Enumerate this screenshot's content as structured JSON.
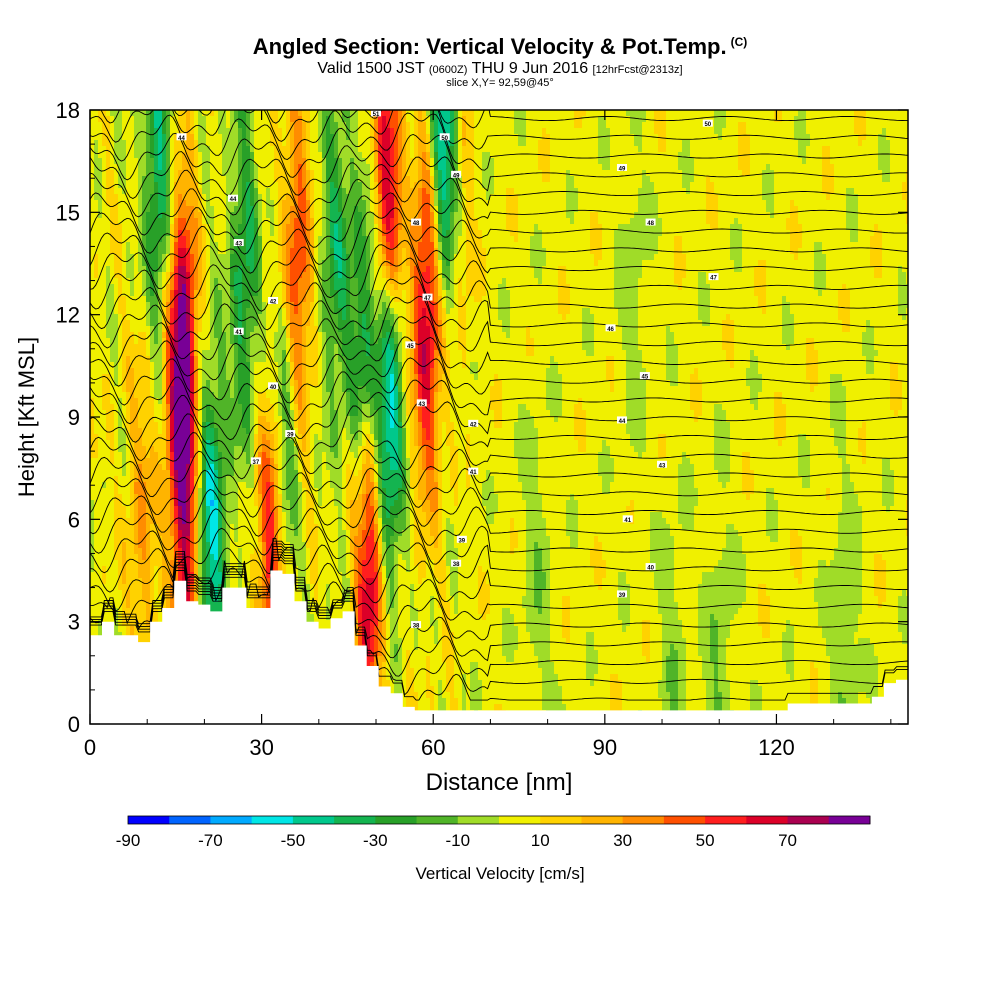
{
  "chart_data": {
    "type": "heatmap",
    "title": "Angled Section: Vertical Velocity & Pot.Temp.",
    "title_unit": "(C)",
    "subtitle_main": "Valid 1500 JST",
    "subtitle_utc": "(0600Z)",
    "subtitle_date": "THU 9 Jun 2016",
    "subtitle_fcst": "[12hrFcst@2313z]",
    "slice_label": "slice X,Y= 92,59@45°",
    "xlabel": "Distance [nm]",
    "ylabel": "Height [Kft MSL]",
    "xlim": [
      0,
      143
    ],
    "ylim": [
      0,
      18
    ],
    "x_ticks": [
      0,
      30,
      60,
      90,
      120
    ],
    "y_ticks": [
      0,
      3,
      6,
      9,
      12,
      15,
      18
    ],
    "colorbar": {
      "label": "Vertical Velocity [cm/s]",
      "tick_labels": [
        "-90",
        "-70",
        "-50",
        "-30",
        "-10",
        "10",
        "30",
        "50",
        "70"
      ],
      "tick_values": [
        -90,
        -70,
        -50,
        -30,
        -10,
        10,
        30,
        50,
        70
      ],
      "bounds": [
        -90,
        -80,
        -70,
        -60,
        -50,
        -40,
        -30,
        -20,
        -10,
        0,
        10,
        20,
        30,
        40,
        50,
        60,
        70,
        80
      ],
      "colors": [
        "#0000ff",
        "#0064ff",
        "#00aaff",
        "#00e6e6",
        "#00c88c",
        "#14b450",
        "#28a028",
        "#50b428",
        "#a0dc28",
        "#f0f000",
        "#ffd200",
        "#ffb400",
        "#ff8c00",
        "#ff5000",
        "#ff1e1e",
        "#dc0028",
        "#aa0050",
        "#780096"
      ]
    },
    "updraft_cores": [
      {
        "x": 16,
        "y": 10.5,
        "w": 90
      },
      {
        "x": 32,
        "y": 5.5,
        "w": 65
      },
      {
        "x": 36,
        "y": 13,
        "w": 55
      },
      {
        "x": 49,
        "y": 5.0,
        "w": 75
      },
      {
        "x": 52,
        "y": 15,
        "w": 80
      },
      {
        "x": 59,
        "y": 12,
        "w": 70
      },
      {
        "x": 17,
        "y": 4.2,
        "w": 45
      },
      {
        "x": 9,
        "y": 6,
        "w": 25
      },
      {
        "x": 64,
        "y": 16,
        "w": 25
      }
    ],
    "downdraft_cores": [
      {
        "x": 12,
        "y": 16,
        "w": -45
      },
      {
        "x": 21,
        "y": 5.5,
        "w": -60
      },
      {
        "x": 27,
        "y": 13,
        "w": -40
      },
      {
        "x": 34,
        "y": 8.5,
        "w": -55
      },
      {
        "x": 43,
        "y": 14,
        "w": -35
      },
      {
        "x": 52,
        "y": 9.5,
        "w": -85
      },
      {
        "x": 62,
        "y": 17,
        "w": -75
      },
      {
        "x": 48,
        "y": 11,
        "w": -45
      },
      {
        "x": 102,
        "y": 1.5,
        "w": -12
      },
      {
        "x": 110,
        "y": 1.2,
        "w": -15
      },
      {
        "x": 132,
        "y": 2.3,
        "w": -14
      },
      {
        "x": 78,
        "y": 4.0,
        "w": -12
      },
      {
        "x": 95,
        "y": 13,
        "w": -10
      }
    ],
    "terrain_height_kft": [
      2.6,
      3.0,
      2.6,
      2.6,
      2.4,
      3.0,
      3.4,
      4.2,
      3.6,
      3.5,
      3.3,
      4.0,
      4.0,
      3.4,
      3.4,
      4.5,
      4.4,
      3.6,
      3.0,
      2.8,
      3.1,
      3.3,
      2.3,
      1.7,
      1.1,
      0.9,
      0.5,
      0.4,
      0.4,
      0.4,
      0.4,
      0.4,
      0.4,
      0.4,
      0.4,
      0.4,
      0.4,
      0.4,
      0.4,
      0.4,
      0.4,
      0.4,
      0.4,
      0.4,
      0.4,
      0.4,
      0.4,
      0.4,
      0.4,
      0.4,
      0.4,
      0.4,
      0.4,
      0.4,
      0.4,
      0.4,
      0.4,
      0.4,
      0.6,
      0.6,
      0.6,
      0.6,
      0.6,
      0.6,
      0.6,
      0.8,
      1.2,
      1.3,
      1.3
    ],
    "theta_line_count": 33,
    "theta_labels": [
      {
        "x": 16,
        "y": 17.2,
        "t": "44"
      },
      {
        "x": 25,
        "y": 15.4,
        "t": "44"
      },
      {
        "x": 26,
        "y": 14.1,
        "t": "43"
      },
      {
        "x": 32,
        "y": 12.4,
        "t": "42"
      },
      {
        "x": 26,
        "y": 11.5,
        "t": "41"
      },
      {
        "x": 32,
        "y": 9.9,
        "t": "40"
      },
      {
        "x": 35,
        "y": 8.5,
        "t": "39"
      },
      {
        "x": 29,
        "y": 7.7,
        "t": "37"
      },
      {
        "x": 50,
        "y": 17.9,
        "t": "51"
      },
      {
        "x": 62,
        "y": 17.2,
        "t": "50"
      },
      {
        "x": 64,
        "y": 16.1,
        "t": "49"
      },
      {
        "x": 57,
        "y": 14.7,
        "t": "48"
      },
      {
        "x": 59,
        "y": 12.5,
        "t": "47"
      },
      {
        "x": 56,
        "y": 11.1,
        "t": "45"
      },
      {
        "x": 58,
        "y": 9.4,
        "t": "43"
      },
      {
        "x": 67,
        "y": 8.8,
        "t": "42"
      },
      {
        "x": 67,
        "y": 7.4,
        "t": "41"
      },
      {
        "x": 65,
        "y": 5.4,
        "t": "39"
      },
      {
        "x": 64,
        "y": 4.7,
        "t": "38"
      },
      {
        "x": 108,
        "y": 17.6,
        "t": "50"
      },
      {
        "x": 93,
        "y": 16.3,
        "t": "49"
      },
      {
        "x": 98,
        "y": 14.7,
        "t": "48"
      },
      {
        "x": 109,
        "y": 13.1,
        "t": "47"
      },
      {
        "x": 91,
        "y": 11.6,
        "t": "46"
      },
      {
        "x": 97,
        "y": 10.2,
        "t": "45"
      },
      {
        "x": 93,
        "y": 8.9,
        "t": "44"
      },
      {
        "x": 100,
        "y": 7.6,
        "t": "43"
      },
      {
        "x": 94,
        "y": 6.0,
        "t": "41"
      },
      {
        "x": 98,
        "y": 4.6,
        "t": "40"
      },
      {
        "x": 93,
        "y": 3.8,
        "t": "39"
      },
      {
        "x": 57,
        "y": 2.9,
        "t": "38"
      }
    ]
  }
}
